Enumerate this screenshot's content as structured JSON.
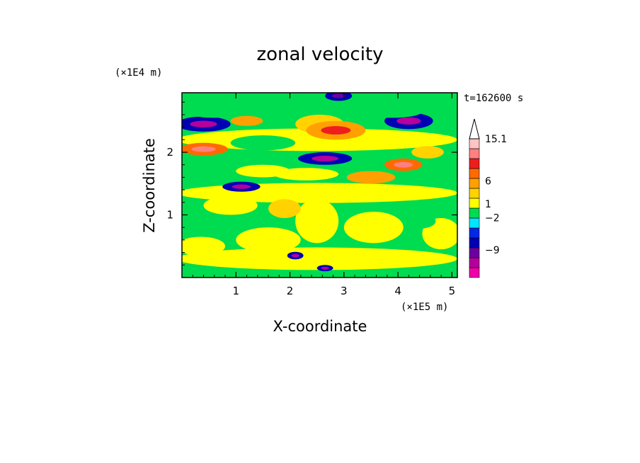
{
  "chart_data": {
    "type": "heatmap",
    "title": "zonal velocity",
    "xlabel": "X-coordinate",
    "ylabel": "Z-coordinate",
    "x_scale_label": "(×1E5 m)",
    "y_scale_label": "(×1E4 m)",
    "time_label": "t=162600 s",
    "xlim": [
      0,
      5.1
    ],
    "ylim": [
      0,
      2.95
    ],
    "x_ticks": [
      1,
      2,
      3,
      4,
      5
    ],
    "y_ticks": [
      1,
      2
    ],
    "colorbar": {
      "labels": [
        {
          "text": "15.1",
          "value": 15.1
        },
        {
          "text": "6",
          "value": 6
        },
        {
          "text": "1",
          "value": 1
        },
        {
          "text": "−2",
          "value": -2
        },
        {
          "text": "−9",
          "value": -9
        }
      ],
      "levels": [
        {
          "color": "#ee00a8"
        },
        {
          "color": "#b4009c"
        },
        {
          "color": "#6c00a0"
        },
        {
          "color": "#0000b4"
        },
        {
          "color": "#0028e6"
        },
        {
          "color": "#00e6ff"
        },
        {
          "color": "#00dc50"
        },
        {
          "color": "#ffff00"
        },
        {
          "color": "#ffd200"
        },
        {
          "color": "#ffa000"
        },
        {
          "color": "#ff6a00"
        },
        {
          "color": "#ee1e1e"
        },
        {
          "color": "#ff8080"
        },
        {
          "color": "#ffc4c4"
        }
      ],
      "extend_max": true
    },
    "field_features": [
      {
        "x": 0.4,
        "z": 2.45,
        "rx": 0.5,
        "rz": 0.12,
        "value": -8
      },
      {
        "x": 0.6,
        "z": 2.65,
        "rx": 0.55,
        "rz": 0.1,
        "value": -1
      },
      {
        "x": 0.4,
        "z": 2.05,
        "rx": 0.45,
        "rz": 0.1,
        "value": 7
      },
      {
        "x": 1.2,
        "z": 2.5,
        "rx": 0.3,
        "rz": 0.08,
        "value": 5
      },
      {
        "x": 1.5,
        "z": 2.15,
        "rx": 0.6,
        "rz": 0.12,
        "value": -1
      },
      {
        "x": 1.1,
        "z": 1.45,
        "rx": 0.35,
        "rz": 0.08,
        "value": -8
      },
      {
        "x": 1.5,
        "z": 1.7,
        "rx": 0.5,
        "rz": 0.1,
        "value": 2
      },
      {
        "x": 2.55,
        "z": 2.45,
        "rx": 0.45,
        "rz": 0.15,
        "value": 4
      },
      {
        "x": 2.85,
        "z": 2.35,
        "rx": 0.55,
        "rz": 0.15,
        "value": 6
      },
      {
        "x": 2.65,
        "z": 1.9,
        "rx": 0.5,
        "rz": 0.1,
        "value": -8
      },
      {
        "x": 2.3,
        "z": 1.65,
        "rx": 0.6,
        "rz": 0.1,
        "value": 1
      },
      {
        "x": 2.9,
        "z": 2.9,
        "rx": 0.25,
        "rz": 0.08,
        "value": -7
      },
      {
        "x": 4.2,
        "z": 2.5,
        "rx": 0.45,
        "rz": 0.13,
        "value": -8
      },
      {
        "x": 3.9,
        "z": 2.65,
        "rx": 0.55,
        "rz": 0.1,
        "value": -1
      },
      {
        "x": 4.1,
        "z": 1.8,
        "rx": 0.35,
        "rz": 0.1,
        "value": 7
      },
      {
        "x": 4.55,
        "z": 2.0,
        "rx": 0.3,
        "rz": 0.1,
        "value": 4
      },
      {
        "x": 3.5,
        "z": 1.6,
        "rx": 0.45,
        "rz": 0.1,
        "value": 5
      },
      {
        "x": 0.9,
        "z": 1.15,
        "rx": 0.5,
        "rz": 0.15,
        "value": 2
      },
      {
        "x": 1.6,
        "z": 0.6,
        "rx": 0.6,
        "rz": 0.2,
        "value": 2
      },
      {
        "x": 2.5,
        "z": 0.9,
        "rx": 0.4,
        "rz": 0.35,
        "value": 1
      },
      {
        "x": 3.55,
        "z": 0.8,
        "rx": 0.55,
        "rz": 0.25,
        "value": 2
      },
      {
        "x": 2.1,
        "z": 0.35,
        "rx": 0.15,
        "rz": 0.06,
        "value": -8
      },
      {
        "x": 2.65,
        "z": 0.15,
        "rx": 0.15,
        "rz": 0.05,
        "value": -8
      },
      {
        "x": 4.8,
        "z": 0.7,
        "rx": 0.35,
        "rz": 0.25,
        "value": 2
      },
      {
        "x": 4.4,
        "z": 0.9,
        "rx": 0.3,
        "rz": 0.12,
        "value": -1
      },
      {
        "x": 0.35,
        "z": 0.5,
        "rx": 0.45,
        "rz": 0.15,
        "value": 2
      },
      {
        "x": 1.9,
        "z": 1.1,
        "rx": 0.3,
        "rz": 0.15,
        "value": 4
      }
    ]
  }
}
